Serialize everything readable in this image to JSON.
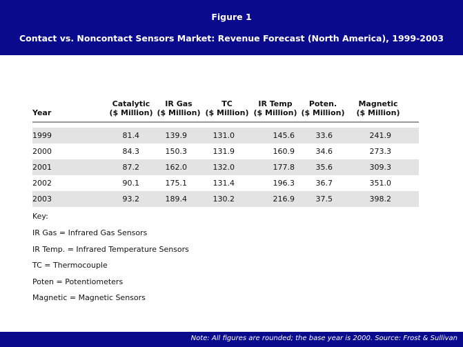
{
  "figure": {
    "label": "Figure 1",
    "title": "Contact vs. Noncontact Sensors Market: Revenue Forecast  (North America), 1999-2003"
  },
  "table": {
    "year_header": "Year",
    "columns": [
      {
        "name": "Catalytic",
        "unit": "($ Million)"
      },
      {
        "name": "IR Gas",
        "unit": "($ Million)"
      },
      {
        "name": "TC",
        "unit": "($ Million)"
      },
      {
        "name": "IR Temp",
        "unit": "($ Million)"
      },
      {
        "name": "Poten.",
        "unit": "($ Million)"
      },
      {
        "name": "Magnetic",
        "unit": "($ Million)"
      }
    ],
    "rows": [
      {
        "year": "1999",
        "values": [
          "81.4",
          "139.9",
          "131.0",
          "145.6",
          "33.6",
          "241.9"
        ]
      },
      {
        "year": "2000",
        "values": [
          "84.3",
          "150.3",
          "131.9",
          "160.9",
          "34.6",
          "273.3"
        ]
      },
      {
        "year": "2001",
        "values": [
          "87.2",
          "162.0",
          "132.0",
          "177.8",
          "35.6",
          "309.3"
        ]
      },
      {
        "year": "2002",
        "values": [
          "90.1",
          "175.1",
          "131.4",
          "196.3",
          "36.7",
          "351.0"
        ]
      },
      {
        "year": "2003",
        "values": [
          "93.2",
          "189.4",
          "130.2",
          "216.9",
          "37.5",
          "398.2"
        ]
      }
    ]
  },
  "key": {
    "title": "Key:",
    "items": [
      "IR Gas = Infrared Gas Sensors",
      "IR Temp. = Infrared Temperature Sensors",
      "TC = Thermocouple",
      "Poten = Potentiometers",
      "Magnetic = Magnetic Sensors"
    ]
  },
  "footer": {
    "note": "Note: All figures are rounded; the base year is 2000. Source: Frost & Sullivan"
  },
  "colors": {
    "banner": "#0a0a8c",
    "row_shade": "#e3e3e3",
    "rule": "#9a9a9a"
  }
}
